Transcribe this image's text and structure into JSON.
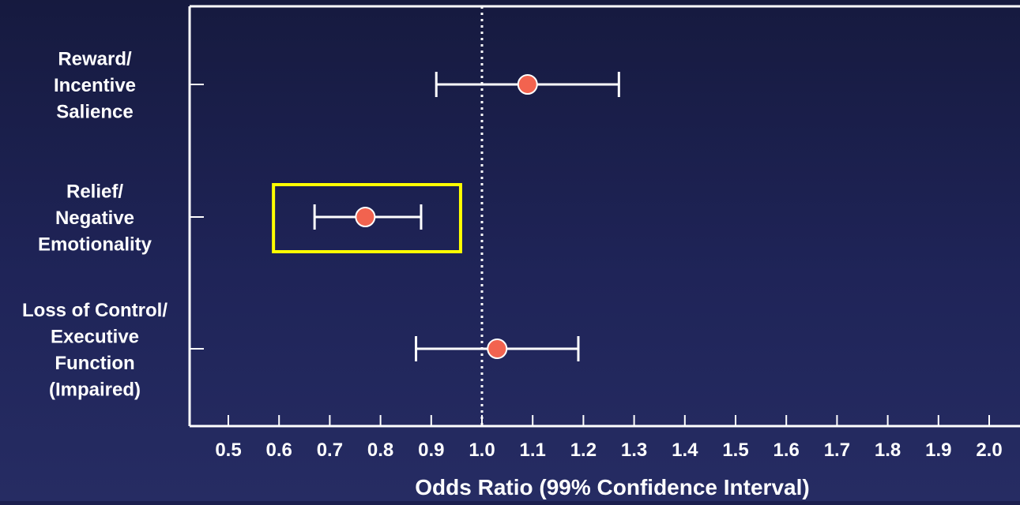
{
  "chart_data": {
    "type": "forest",
    "xlabel": "Odds Ratio (99% Confidence Interval)",
    "xlim": [
      0.45,
      2.05
    ],
    "x_ticks": [
      "0.5",
      "0.6",
      "0.7",
      "0.8",
      "0.9",
      "1.0",
      "1.1",
      "1.2",
      "1.3",
      "1.4",
      "1.5",
      "1.6",
      "1.7",
      "1.8",
      "1.9",
      "2.0"
    ],
    "reference_line": 1.0,
    "categories": [
      {
        "label_lines": [
          "Reward/",
          "Incentive",
          "Salience"
        ],
        "odds_ratio": 1.09,
        "ci_low": 0.91,
        "ci_high": 1.27,
        "highlighted": false
      },
      {
        "label_lines": [
          "Relief/",
          "Negative",
          "Emotionality"
        ],
        "odds_ratio": 0.77,
        "ci_low": 0.67,
        "ci_high": 0.88,
        "highlighted": true
      },
      {
        "label_lines": [
          "Loss of Control/",
          "Executive",
          "Function",
          "(Impaired)"
        ],
        "odds_ratio": 1.03,
        "ci_low": 0.87,
        "ci_high": 1.19,
        "highlighted": false
      }
    ],
    "colors": {
      "point": "#f2634f",
      "highlight_box": "#ffff00",
      "axis": "#ffffff",
      "text": "#ffffff"
    },
    "grid": false
  }
}
